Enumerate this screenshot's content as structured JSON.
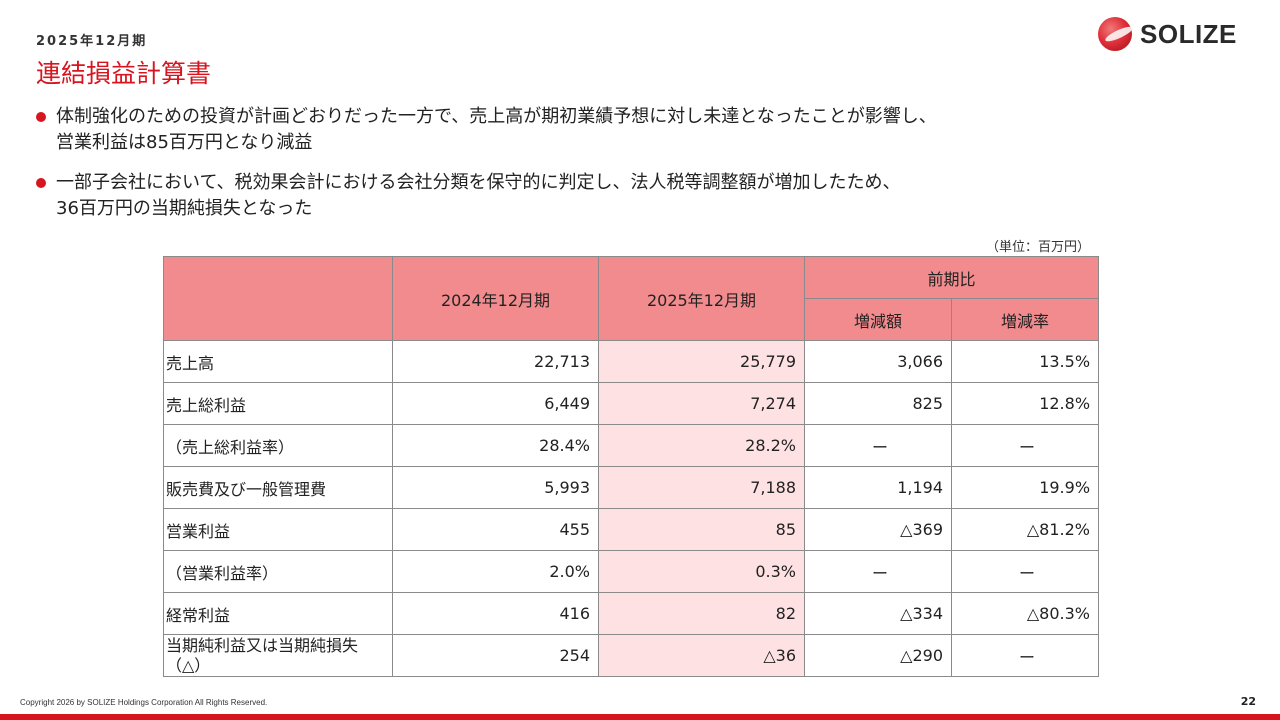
{
  "header": {
    "period": "2025年12月期",
    "title": "連結損益計算書",
    "logo_text": "SOLIZE"
  },
  "bullets": [
    {
      "lines": [
        "体制強化のための投資が計画どおりだった一方で、売上高が期初業績予想に対し未達となったことが影響し、",
        "営業利益は85百万円となり減益"
      ]
    },
    {
      "lines": [
        "一部子会社において、税効果会計における会社分類を保守的に判定し、法人税等調整額が増加したため、",
        "36百万円の当期純損失となった"
      ]
    }
  ],
  "table": {
    "unit": "（単位：百万円）",
    "headers": {
      "prev_period": "2024年12月期",
      "curr_period": "2025年12月期",
      "comparison": "前期比",
      "change_amount": "増減額",
      "change_rate": "増減率"
    },
    "rows": [
      {
        "label_lines": [
          "売上高"
        ],
        "prev": "22,713",
        "curr": "25,779",
        "diff": "3,066",
        "rate": "13.5%"
      },
      {
        "label_lines": [
          "売上総利益"
        ],
        "prev": "6,449",
        "curr": "7,274",
        "diff": "825",
        "rate": "12.8%"
      },
      {
        "label_lines": [
          "（売上総利益率）"
        ],
        "prev": "28.4%",
        "curr": "28.2%",
        "diff": "ー",
        "rate": "ー"
      },
      {
        "label_lines": [
          "販売費及び一般管理費"
        ],
        "prev": "5,993",
        "curr": "7,188",
        "diff": "1,194",
        "rate": "19.9%"
      },
      {
        "label_lines": [
          "営業利益"
        ],
        "prev": "455",
        "curr": "85",
        "diff": "△369",
        "rate": "△81.2%"
      },
      {
        "label_lines": [
          "（営業利益率）"
        ],
        "prev": "2.0%",
        "curr": "0.3%",
        "diff": "ー",
        "rate": "ー"
      },
      {
        "label_lines": [
          "経常利益"
        ],
        "prev": "416",
        "curr": "82",
        "diff": "△334",
        "rate": "△80.3%"
      },
      {
        "label_lines": [
          "当期純利益又は当期純損失",
          "（△）"
        ],
        "prev": "254",
        "curr": "△36",
        "diff": "△290",
        "rate": "ー"
      }
    ]
  },
  "footer": {
    "copyright": "Copyright 2026 by SOLIZE Holdings Corporation All Rights Reserved.",
    "page_number": "22"
  },
  "colors": {
    "accent": "#d7151f",
    "header_fill": "#f28b8d",
    "current_period_fill": "#fde1e3"
  }
}
